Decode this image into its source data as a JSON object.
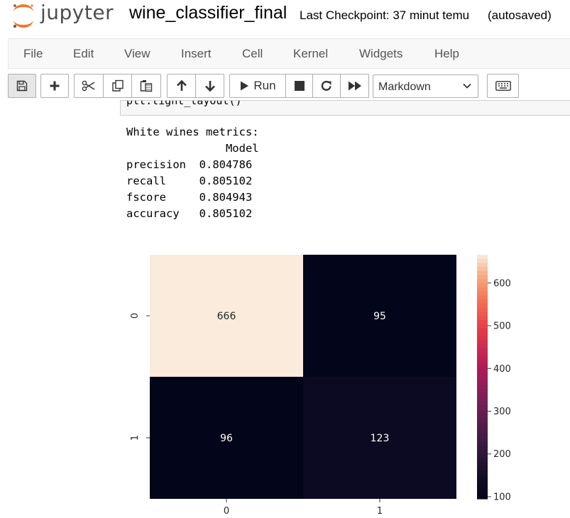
{
  "header": {
    "logo_text": "jupyter",
    "notebook_name": "wine_classifier_final",
    "checkpoint": "Last Checkpoint: 37 minut temu",
    "autosave_status": "(autosaved)"
  },
  "menu": {
    "items": [
      {
        "label": "File"
      },
      {
        "label": "Edit"
      },
      {
        "label": "View"
      },
      {
        "label": "Insert"
      },
      {
        "label": "Cell"
      },
      {
        "label": "Kernel"
      },
      {
        "label": "Widgets"
      },
      {
        "label": "Help"
      }
    ]
  },
  "toolbar": {
    "buttons": {
      "save": "save-icon",
      "insert_cell": "plus-icon",
      "cut": "scissors-icon",
      "copy": "copy-icon",
      "paste": "paste-icon",
      "move_up": "arrow-up-icon",
      "move_down": "arrow-down-icon",
      "run": "play-icon",
      "interrupt": "stop-icon",
      "restart": "restart-icon",
      "restart_run_all": "fast-forward-icon",
      "command_palette": "keyboard-icon"
    },
    "run_label": "Run",
    "cell_type": "Markdown"
  },
  "cell": {
    "code_visible": "plt.tight_layout()"
  },
  "output": {
    "lines": [
      "White wines metrics:",
      "               Model",
      "precision  0.804786",
      "recall     0.805102",
      "fscore     0.804943",
      "accuracy   0.805102"
    ]
  },
  "colors": {
    "logo_orange": "#f37726",
    "menubar_bg": "#f8f8f8",
    "toolbar_border": "#adadad"
  },
  "chart_data": {
    "type": "heatmap",
    "title": "",
    "xlabel": "",
    "ylabel": "",
    "x_categories": [
      "0",
      "1"
    ],
    "y_categories": [
      "0",
      "1"
    ],
    "values": [
      [
        666,
        95
      ],
      [
        96,
        123
      ]
    ],
    "annotations": [
      "666",
      "95",
      "96",
      "123"
    ],
    "colormap": "rocket",
    "colorbar": {
      "range": [
        95,
        666
      ],
      "ticks": [
        100,
        200,
        300,
        400,
        500,
        600
      ],
      "tick_labels": [
        "100",
        "200",
        "300",
        "400",
        "500",
        "600"
      ]
    }
  }
}
